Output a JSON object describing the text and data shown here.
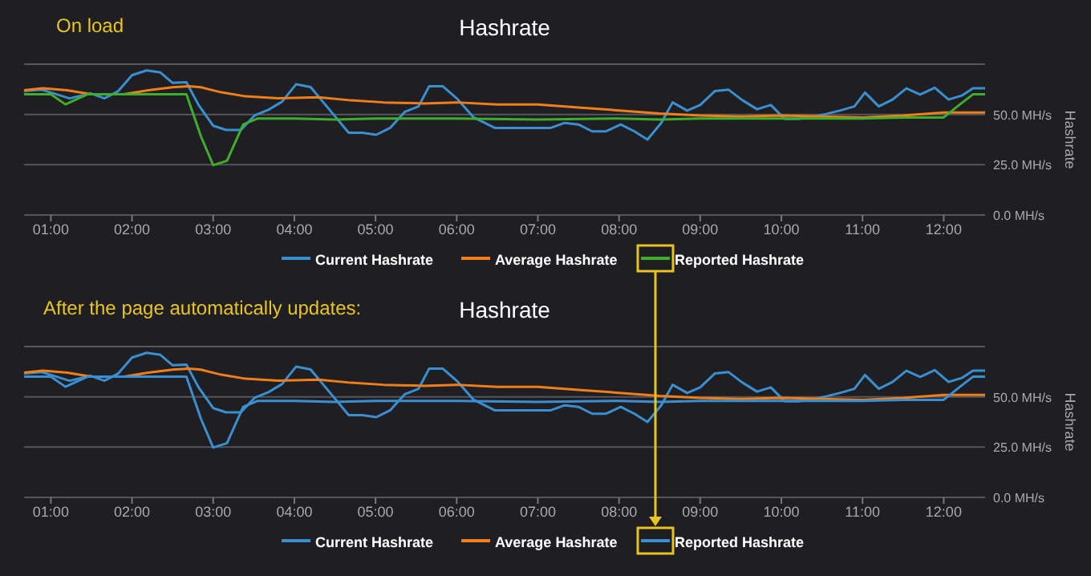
{
  "chart_data": [
    {
      "type": "line",
      "title": "Hashrate",
      "ylabel": "Hashrate",
      "annotations": [
        "On load"
      ],
      "xlim": [
        0.67,
        12.51
      ],
      "ylim": [
        0,
        75
      ],
      "xticks": [
        {
          "value": 1,
          "label": "01:00"
        },
        {
          "value": 2,
          "label": "02:00"
        },
        {
          "value": 3,
          "label": "03:00"
        },
        {
          "value": 4,
          "label": "04:00"
        },
        {
          "value": 5,
          "label": "05:00"
        },
        {
          "value": 6,
          "label": "06:00"
        },
        {
          "value": 7,
          "label": "07:00"
        },
        {
          "value": 8,
          "label": "08:00"
        },
        {
          "value": 9,
          "label": "09:00"
        },
        {
          "value": 10,
          "label": "10:00"
        },
        {
          "value": 11,
          "label": "11:00"
        },
        {
          "value": 12,
          "label": "12:00"
        }
      ],
      "yticks": [
        {
          "value": 0,
          "label": "0.0 MH/s"
        },
        {
          "value": 25,
          "label": "25.0 MH/s"
        },
        {
          "value": 50,
          "label": "50.0 MH/s"
        },
        {
          "value": 75,
          "label": null
        }
      ],
      "grid": "y",
      "legend": "bottom",
      "marker": "none",
      "line_style": "solid",
      "series": [
        {
          "name": "Current Hashrate",
          "color": "#3a8fd0",
          "x": [
            0.67,
            0.89,
            1.23,
            1.49,
            1.66,
            1.83,
            2.0,
            2.18,
            2.35,
            2.5,
            2.67,
            2.82,
            3.0,
            3.16,
            3.34,
            3.51,
            3.68,
            3.85,
            4.02,
            4.2,
            4.37,
            4.67,
            4.84,
            5.01,
            5.18,
            5.36,
            5.53,
            5.66,
            5.83,
            6.0,
            6.21,
            6.47,
            6.73,
            7.16,
            7.33,
            7.5,
            7.67,
            7.84,
            8.02,
            8.19,
            8.35,
            8.52,
            8.66,
            8.84,
            9.0,
            9.18,
            9.35,
            9.52,
            9.7,
            9.87,
            10.04,
            10.21,
            10.38,
            10.55,
            10.72,
            10.9,
            11.03,
            11.2,
            11.37,
            11.54,
            11.71,
            11.89,
            12.06,
            12.23,
            12.36,
            12.51
          ],
          "values": [
            61.6,
            62.3,
            58,
            60.5,
            58,
            61.6,
            69.5,
            71.9,
            70.9,
            65.7,
            66,
            54.7,
            44.4,
            42.3,
            42.3,
            49.5,
            52.3,
            56.4,
            65,
            63.6,
            55.4,
            40.9,
            40.9,
            39.9,
            43.3,
            51.3,
            54,
            64,
            64,
            58,
            48.5,
            43.3,
            43.3,
            43.3,
            45.8,
            45,
            41.6,
            41.6,
            45,
            41.6,
            37.5,
            45.8,
            56,
            51.9,
            54.7,
            61.6,
            62.3,
            57.1,
            52.6,
            54.7,
            47.8,
            47.8,
            48.8,
            50.2,
            51.9,
            54,
            60.9,
            54,
            57.4,
            63,
            59.9,
            63.3,
            57.4,
            59.5,
            63,
            63
          ]
        },
        {
          "name": "Average Hashrate",
          "color": "#f07f1a",
          "x": [
            0.67,
            0.9,
            1.2,
            1.5,
            1.9,
            2.2,
            2.5,
            2.7,
            2.85,
            3.1,
            3.4,
            3.8,
            4.3,
            4.7,
            5.1,
            5.6,
            6.0,
            6.5,
            7.0,
            7.5,
            8.0,
            8.5,
            9.0,
            9.5,
            10.0,
            10.5,
            11.0,
            11.5,
            12.0,
            12.51
          ],
          "values": [
            62,
            63,
            62,
            60,
            60,
            62,
            63.5,
            64,
            63.5,
            61,
            59,
            58,
            58.5,
            57,
            56,
            55.5,
            56,
            55,
            55,
            53.5,
            52,
            50.5,
            49.5,
            49,
            49.5,
            49,
            48.5,
            49.5,
            51,
            51
          ]
        },
        {
          "name": "Reported Hashrate",
          "color": "#3fae2a",
          "x": [
            0.67,
            1.0,
            1.18,
            1.45,
            2.0,
            2.67,
            2.85,
            3.0,
            3.17,
            3.37,
            3.55,
            4.0,
            4.5,
            5.0,
            6.0,
            7.0,
            8.0,
            8.5,
            9.0,
            10.0,
            11.0,
            11.5,
            12.0,
            12.2,
            12.36,
            12.51
          ],
          "values": [
            60,
            60,
            55,
            60,
            60,
            60,
            39,
            24.8,
            27,
            45,
            48,
            48,
            47.5,
            48,
            48,
            47.5,
            48,
            47.5,
            48,
            48,
            48,
            48.5,
            48.5,
            55,
            60,
            60
          ]
        }
      ]
    },
    {
      "type": "line",
      "title": "Hashrate",
      "ylabel": "Hashrate",
      "annotations": [
        "After the page automatically updates:"
      ],
      "xlim": [
        0.67,
        12.51
      ],
      "ylim": [
        0,
        75
      ],
      "xticks": [
        {
          "value": 1,
          "label": "01:00"
        },
        {
          "value": 2,
          "label": "02:00"
        },
        {
          "value": 3,
          "label": "03:00"
        },
        {
          "value": 4,
          "label": "04:00"
        },
        {
          "value": 5,
          "label": "05:00"
        },
        {
          "value": 6,
          "label": "06:00"
        },
        {
          "value": 7,
          "label": "07:00"
        },
        {
          "value": 8,
          "label": "08:00"
        },
        {
          "value": 9,
          "label": "09:00"
        },
        {
          "value": 10,
          "label": "10:00"
        },
        {
          "value": 11,
          "label": "11:00"
        },
        {
          "value": 12,
          "label": "12:00"
        }
      ],
      "yticks": [
        {
          "value": 0,
          "label": "0.0 MH/s"
        },
        {
          "value": 25,
          "label": "25.0 MH/s"
        },
        {
          "value": 50,
          "label": "50.0 MH/s"
        },
        {
          "value": 75,
          "label": null
        }
      ],
      "grid": "y",
      "legend": "bottom",
      "marker": "none",
      "line_style": "solid",
      "series": [
        {
          "name": "Current Hashrate",
          "color": "#3a8fd0",
          "x": [
            0.67,
            0.89,
            1.23,
            1.49,
            1.66,
            1.83,
            2.0,
            2.18,
            2.35,
            2.5,
            2.67,
            2.82,
            3.0,
            3.16,
            3.34,
            3.51,
            3.68,
            3.85,
            4.02,
            4.2,
            4.37,
            4.67,
            4.84,
            5.01,
            5.18,
            5.36,
            5.53,
            5.66,
            5.83,
            6.0,
            6.21,
            6.47,
            6.73,
            7.16,
            7.33,
            7.5,
            7.67,
            7.84,
            8.02,
            8.19,
            8.35,
            8.52,
            8.66,
            8.84,
            9.0,
            9.18,
            9.35,
            9.52,
            9.7,
            9.87,
            10.04,
            10.21,
            10.38,
            10.55,
            10.72,
            10.9,
            11.03,
            11.2,
            11.37,
            11.54,
            11.71,
            11.89,
            12.06,
            12.23,
            12.36,
            12.51
          ],
          "values": [
            61.6,
            62.3,
            58,
            60.5,
            58,
            61.6,
            69.5,
            71.9,
            70.9,
            65.7,
            66,
            54.7,
            44.4,
            42.3,
            42.3,
            49.5,
            52.3,
            56.4,
            65,
            63.6,
            55.4,
            40.9,
            40.9,
            39.9,
            43.3,
            51.3,
            54,
            64,
            64,
            58,
            48.5,
            43.3,
            43.3,
            43.3,
            45.8,
            45,
            41.6,
            41.6,
            45,
            41.6,
            37.5,
            45.8,
            56,
            51.9,
            54.7,
            61.6,
            62.3,
            57.1,
            52.6,
            54.7,
            47.8,
            47.8,
            48.8,
            50.2,
            51.9,
            54,
            60.9,
            54,
            57.4,
            63,
            59.9,
            63.3,
            57.4,
            59.5,
            63,
            63
          ]
        },
        {
          "name": "Average Hashrate",
          "color": "#f07f1a",
          "x": [
            0.67,
            0.9,
            1.2,
            1.5,
            1.9,
            2.2,
            2.5,
            2.7,
            2.85,
            3.1,
            3.4,
            3.8,
            4.3,
            4.7,
            5.1,
            5.6,
            6.0,
            6.5,
            7.0,
            7.5,
            8.0,
            8.5,
            9.0,
            9.5,
            10.0,
            10.5,
            11.0,
            11.5,
            12.0,
            12.51
          ],
          "values": [
            62,
            63,
            62,
            60,
            60,
            62,
            63.5,
            64,
            63.5,
            61,
            59,
            58,
            58.5,
            57,
            56,
            55.5,
            56,
            55,
            55,
            53.5,
            52,
            50.5,
            49.5,
            49,
            49.5,
            49,
            48.5,
            49.5,
            51,
            51
          ]
        },
        {
          "name": "Reported Hashrate",
          "color": "#3a8fd0",
          "x": [
            0.67,
            1.0,
            1.18,
            1.45,
            2.0,
            2.67,
            2.85,
            3.0,
            3.17,
            3.37,
            3.55,
            4.0,
            4.5,
            5.0,
            6.0,
            7.0,
            8.0,
            8.5,
            9.0,
            10.0,
            11.0,
            11.5,
            12.0,
            12.2,
            12.36,
            12.51
          ],
          "values": [
            60,
            60,
            55,
            60,
            60,
            60,
            39,
            24.8,
            27,
            45,
            48,
            48,
            47.5,
            48,
            48,
            47.5,
            48,
            47.5,
            48,
            48,
            48,
            48.5,
            48.5,
            55,
            60,
            60
          ]
        }
      ]
    }
  ]
}
